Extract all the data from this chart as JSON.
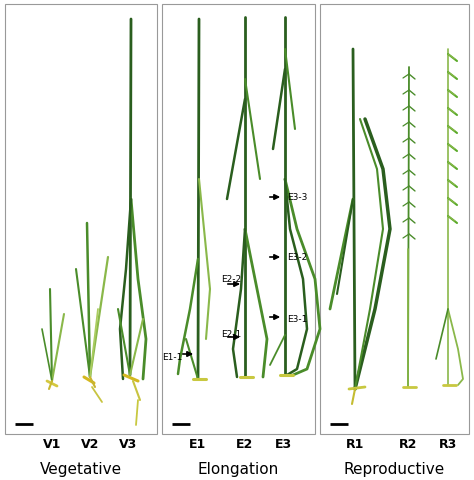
{
  "fig_width": 4.74,
  "fig_height": 4.81,
  "dpi": 100,
  "bg_color": "#ffffff",
  "panel_border_color": "#888888",
  "text_color": "#000000",
  "scale_bar_color": "#000000",
  "panel_titles": [
    "Vegetative",
    "Elongation",
    "Reproductive"
  ],
  "panel_labels": [
    [
      "V1",
      "V2",
      "V3"
    ],
    [
      "E1",
      "E2",
      "E3"
    ],
    [
      "R1",
      "R2",
      "R3"
    ]
  ],
  "dark_green": "#2a5e1e",
  "med_green": "#4a8c2a",
  "light_green": "#8ab84a",
  "yellow_green": "#c8d820",
  "pale_yellow": "#d4c840",
  "bright_green": "#5aaa28",
  "v_light_green": "#aacc60"
}
